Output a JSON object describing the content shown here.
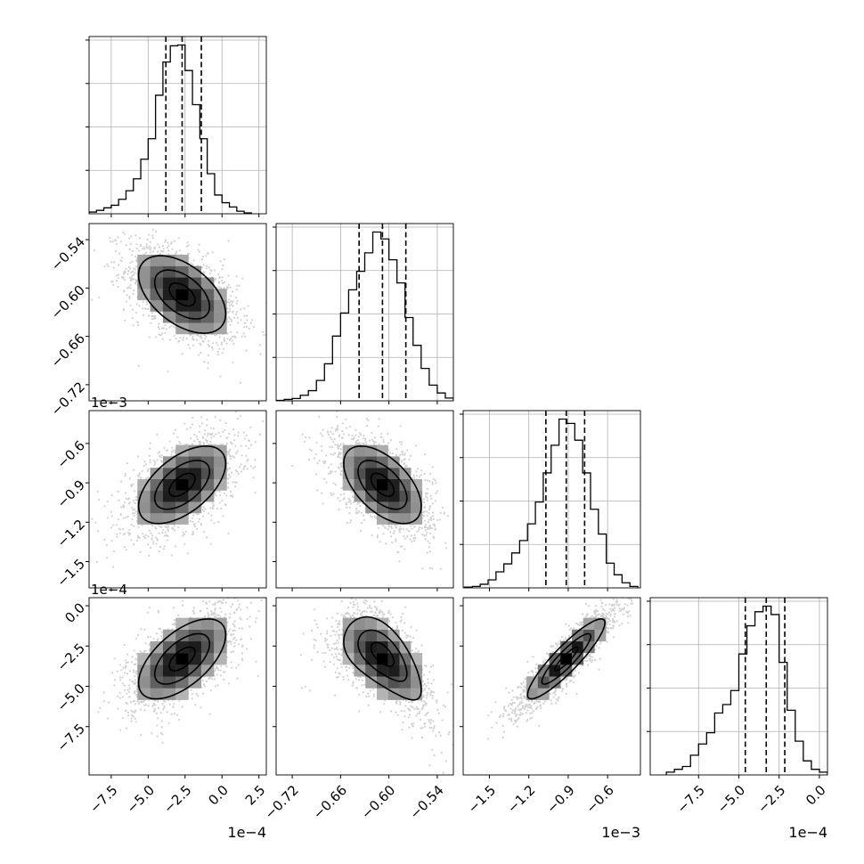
{
  "chart_data": {
    "type": "corner",
    "title": "",
    "parameters": [
      {
        "label": "",
        "ticks": [
          -7.5,
          -5.0,
          -2.5,
          0.0,
          2.5
        ],
        "tick_labels": [
          "−7.5",
          "−5.0",
          "−2.5",
          "0.0",
          "2.5"
        ],
        "range": [
          -9.0,
          3.0
        ],
        "offset_label": "1e−4",
        "quantiles": [
          -3.8,
          -2.7,
          -1.4
        ],
        "hist_x": [
          -8.75,
          -8.25,
          -7.75,
          -7.25,
          -6.75,
          -6.25,
          -5.75,
          -5.25,
          -4.75,
          -4.25,
          -3.75,
          -3.25,
          -2.75,
          -2.25,
          -1.75,
          -1.25,
          -0.75,
          -0.25,
          0.25,
          0.75,
          1.25,
          1.75
        ],
        "hist_counts": [
          2,
          4,
          7,
          10,
          17,
          27,
          41,
          64,
          88,
          139,
          178,
          197,
          198,
          168,
          128,
          88,
          47,
          22,
          13,
          8,
          3,
          1
        ]
      },
      {
        "label": "",
        "ticks": [
          -0.72,
          -0.66,
          -0.6,
          -0.54
        ],
        "tick_labels": [
          "−0.72",
          "−0.66",
          "−0.60",
          "−0.54"
        ],
        "range": [
          -0.74,
          -0.52
        ],
        "offset_label": "",
        "quantiles": [
          -0.637,
          -0.608,
          -0.579
        ],
        "hist_x": [
          -0.735,
          -0.725,
          -0.715,
          -0.705,
          -0.695,
          -0.685,
          -0.675,
          -0.665,
          -0.655,
          -0.645,
          -0.635,
          -0.625,
          -0.615,
          -0.605,
          -0.595,
          -0.585,
          -0.575,
          -0.565,
          -0.555,
          -0.545,
          -0.535,
          -0.525
        ],
        "hist_counts": [
          1,
          3,
          5,
          12,
          22,
          44,
          80,
          140,
          190,
          240,
          280,
          320,
          365,
          350,
          305,
          255,
          180,
          120,
          70,
          34,
          17,
          6
        ]
      },
      {
        "label": "",
        "ticks": [
          -1.5,
          -1.2,
          -0.9,
          -0.6
        ],
        "tick_labels": [
          "−1.5",
          "−1.2",
          "−0.9",
          "−0.6"
        ],
        "range": [
          -1.7,
          -0.35
        ],
        "offset_label": "1e−3",
        "quantiles": [
          -1.07,
          -0.915,
          -0.775
        ],
        "hist_x": [
          -1.66,
          -1.6,
          -1.54,
          -1.48,
          -1.42,
          -1.36,
          -1.3,
          -1.24,
          -1.18,
          -1.12,
          -1.06,
          -1.0,
          -0.94,
          -0.88,
          -0.82,
          -0.76,
          -0.7,
          -0.64,
          -0.58,
          -0.52,
          -0.46,
          -0.4
        ],
        "hist_counts": [
          1,
          2,
          5,
          11,
          22,
          33,
          48,
          65,
          88,
          118,
          158,
          196,
          232,
          226,
          203,
          158,
          108,
          74,
          34,
          18,
          7,
          2
        ]
      },
      {
        "label": "",
        "ticks": [
          -7.5,
          -5.0,
          -2.5,
          0.0
        ],
        "tick_labels": [
          "−7.5",
          "−5.0",
          "−2.5",
          "0.0"
        ],
        "range": [
          -10.5,
          0.5
        ],
        "offset_label": "1e−4",
        "quantiles": [
          -4.6,
          -3.3,
          -2.15
        ],
        "hist_x": [
          -9.25,
          -8.75,
          -8.25,
          -7.75,
          -7.25,
          -6.75,
          -6.25,
          -5.75,
          -5.25,
          -4.75,
          -4.25,
          -3.75,
          -3.25,
          -2.75,
          -2.25,
          -1.75,
          -1.25,
          -0.75,
          -0.25,
          0.25
        ],
        "hist_counts": [
          1,
          2,
          3,
          7,
          11,
          15,
          22,
          25,
          30,
          43,
          53,
          58,
          60,
          57,
          40,
          23,
          12,
          5,
          2,
          1
        ]
      }
    ],
    "pairs": [
      {
        "row": 1,
        "col": 0,
        "center": [
          -2.7,
          -0.608
        ],
        "sigma": [
          1.9,
          0.031
        ],
        "rho": -0.5,
        "curve": 0
      },
      {
        "row": 2,
        "col": 0,
        "center": [
          -2.7,
          -0.915
        ],
        "sigma": [
          1.9,
          0.19
        ],
        "rho": 0.55,
        "curve": 0
      },
      {
        "row": 2,
        "col": 1,
        "center": [
          -0.608,
          -0.915
        ],
        "sigma": [
          0.031,
          0.19
        ],
        "rho": -0.55,
        "curve": 0
      },
      {
        "row": 3,
        "col": 0,
        "center": [
          -2.7,
          -3.3
        ],
        "sigma": [
          1.9,
          1.6
        ],
        "rho": 0.6,
        "curve": 0
      },
      {
        "row": 3,
        "col": 1,
        "center": [
          -0.608,
          -3.3
        ],
        "sigma": [
          0.031,
          1.6
        ],
        "rho": -0.6,
        "curve": 0.55
      },
      {
        "row": 3,
        "col": 2,
        "center": [
          -0.915,
          -3.3
        ],
        "sigma": [
          0.19,
          1.6
        ],
        "rho": 0.9,
        "curve": 0
      }
    ],
    "contour_levels": [
      0.3,
      0.62,
      0.9
    ],
    "grid": true,
    "legend": "none"
  }
}
